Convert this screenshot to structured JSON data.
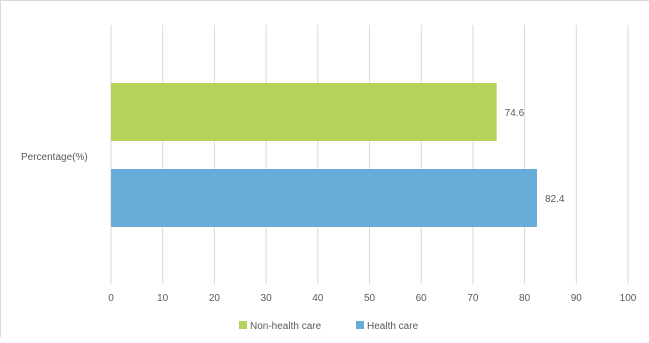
{
  "chart_data": {
    "type": "bar",
    "orientation": "horizontal",
    "categories": [
      "Percentage(%)"
    ],
    "series": [
      {
        "name": "Non-health care",
        "values": [
          74.6
        ],
        "color": "#b5d25a"
      },
      {
        "name": "Health care",
        "values": [
          82.4
        ],
        "color": "#68acd9"
      }
    ],
    "xlim": [
      0,
      100
    ],
    "x_ticks": [
      "0",
      "10",
      "20",
      "30",
      "40",
      "50",
      "60",
      "70",
      "80",
      "90",
      "100"
    ],
    "data_labels": [
      "74.6",
      "82.4"
    ],
    "grid": "vertical",
    "legend_position": "bottom",
    "title": "",
    "xlabel": "",
    "ylabel": ""
  }
}
